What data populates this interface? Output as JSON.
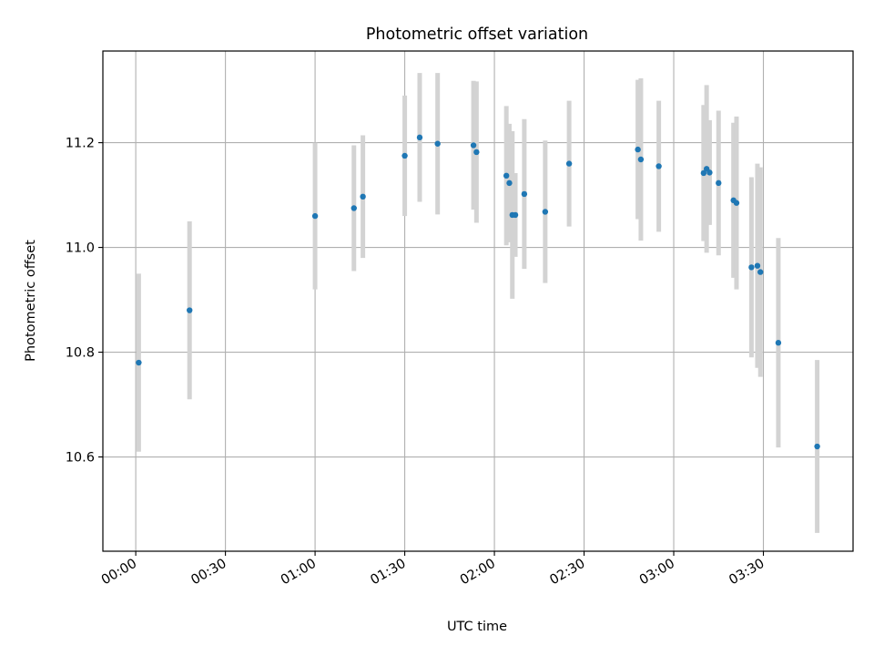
{
  "chart_data": {
    "type": "scatter",
    "title": "Photometric offset variation",
    "xlabel": "UTC time",
    "ylabel": "Photometric offset",
    "x_unit": "UTC HH:MM",
    "xlim": [
      "23:49",
      "04:00"
    ],
    "ylim": [
      10.42,
      11.375
    ],
    "x_ticks": [
      "00:00",
      "00:30",
      "01:00",
      "01:30",
      "02:00",
      "02:30",
      "03:00",
      "03:30"
    ],
    "y_ticks": [
      10.6,
      10.8,
      11.0,
      11.2
    ],
    "y_tick_labels": [
      "10.6",
      "10.8",
      "11.0",
      "11.2"
    ],
    "grid": true,
    "legend": "none",
    "colors": {
      "points": "#1f77b4",
      "error_bars": "#d3d3d3",
      "grid": "#b0b0b0"
    },
    "points": [
      {
        "x": "00:01",
        "y": 10.78,
        "yerr": 0.17
      },
      {
        "x": "00:18",
        "y": 10.88,
        "yerr": 0.17
      },
      {
        "x": "01:00",
        "y": 11.06,
        "yerr": 0.14
      },
      {
        "x": "01:13",
        "y": 11.075,
        "yerr": 0.12
      },
      {
        "x": "01:16",
        "y": 11.097,
        "yerr": 0.117
      },
      {
        "x": "01:30",
        "y": 11.175,
        "yerr": 0.115
      },
      {
        "x": "01:35",
        "y": 11.21,
        "yerr": 0.123
      },
      {
        "x": "01:41",
        "y": 11.198,
        "yerr": 0.135
      },
      {
        "x": "01:53",
        "y": 11.195,
        "yerr": 0.123
      },
      {
        "x": "01:54",
        "y": 11.182,
        "yerr": 0.135
      },
      {
        "x": "02:04",
        "y": 11.137,
        "yerr": 0.133
      },
      {
        "x": "02:05",
        "y": 11.123,
        "yerr": 0.113
      },
      {
        "x": "02:06",
        "y": 11.062,
        "yerr": 0.16
      },
      {
        "x": "02:07",
        "y": 11.062,
        "yerr": 0.08
      },
      {
        "x": "02:10",
        "y": 11.102,
        "yerr": 0.143
      },
      {
        "x": "02:17",
        "y": 11.068,
        "yerr": 0.136
      },
      {
        "x": "02:25",
        "y": 11.16,
        "yerr": 0.12
      },
      {
        "x": "02:48",
        "y": 11.187,
        "yerr": 0.133
      },
      {
        "x": "02:49",
        "y": 11.168,
        "yerr": 0.155
      },
      {
        "x": "02:55",
        "y": 11.155,
        "yerr": 0.125
      },
      {
        "x": "03:10",
        "y": 11.142,
        "yerr": 0.13
      },
      {
        "x": "03:11",
        "y": 11.15,
        "yerr": 0.16
      },
      {
        "x": "03:12",
        "y": 11.143,
        "yerr": 0.1
      },
      {
        "x": "03:15",
        "y": 11.123,
        "yerr": 0.138
      },
      {
        "x": "03:20",
        "y": 11.09,
        "yerr": 0.148
      },
      {
        "x": "03:21",
        "y": 11.085,
        "yerr": 0.165
      },
      {
        "x": "03:26",
        "y": 10.962,
        "yerr": 0.172
      },
      {
        "x": "03:28",
        "y": 10.965,
        "yerr": 0.195
      },
      {
        "x": "03:29",
        "y": 10.953,
        "yerr": 0.2
      },
      {
        "x": "03:35",
        "y": 10.818,
        "yerr": 0.2
      },
      {
        "x": "03:48",
        "y": 10.62,
        "yerr": 0.165
      }
    ]
  }
}
